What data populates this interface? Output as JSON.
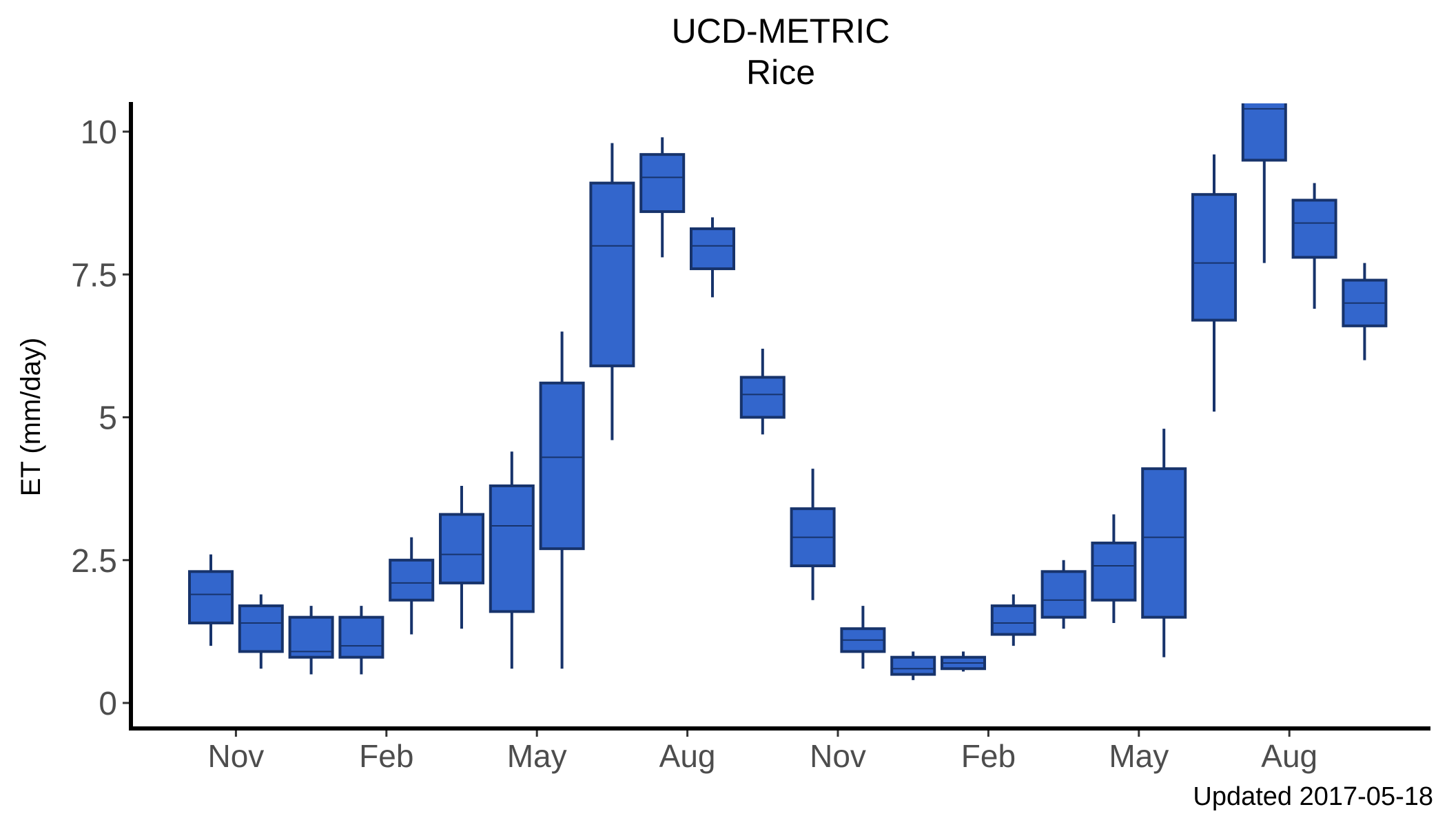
{
  "chart_data": {
    "type": "boxplot",
    "title": "UCD-METRIC",
    "subtitle": "Rice",
    "ylabel": "ET (mm/day)",
    "xlabel": "",
    "caption": "Updated  2017-05-18",
    "ylim": [
      -0.5,
      10.5
    ],
    "yticks": [
      {
        "value": 0,
        "label": "0"
      },
      {
        "value": 2.5,
        "label": "2.5"
      },
      {
        "value": 5,
        "label": "5"
      },
      {
        "value": 7.5,
        "label": "7.5"
      },
      {
        "value": 10,
        "label": "10"
      }
    ],
    "xticks": [
      {
        "label": "Nov",
        "index": 0.5
      },
      {
        "label": "Feb",
        "index": 3.5
      },
      {
        "label": "May",
        "index": 6.5
      },
      {
        "label": "Aug",
        "index": 9.5
      },
      {
        "label": "Nov",
        "index": 12.5
      },
      {
        "label": "Feb",
        "index": 15.5
      },
      {
        "label": "May",
        "index": 18.5
      },
      {
        "label": "Aug",
        "index": 21.5
      }
    ],
    "box_fill": "#3366cc",
    "box_stroke": "#17336b",
    "boxes": [
      {
        "low": 1.0,
        "q1": 1.4,
        "median": 1.9,
        "q3": 2.3,
        "high": 2.6
      },
      {
        "low": 0.6,
        "q1": 0.9,
        "median": 1.4,
        "q3": 1.7,
        "high": 1.9
      },
      {
        "low": 0.5,
        "q1": 0.8,
        "median": 0.9,
        "q3": 1.5,
        "high": 1.7
      },
      {
        "low": 0.5,
        "q1": 0.8,
        "median": 1.0,
        "q3": 1.5,
        "high": 1.7
      },
      {
        "low": 1.2,
        "q1": 1.8,
        "median": 2.1,
        "q3": 2.5,
        "high": 2.9
      },
      {
        "low": 1.3,
        "q1": 2.1,
        "median": 2.6,
        "q3": 3.3,
        "high": 3.8
      },
      {
        "low": 0.6,
        "q1": 1.6,
        "median": 3.1,
        "q3": 3.8,
        "high": 4.4
      },
      {
        "low": 0.6,
        "q1": 2.7,
        "median": 4.3,
        "q3": 5.6,
        "high": 6.5
      },
      {
        "low": 4.6,
        "q1": 5.9,
        "median": 8.0,
        "q3": 9.1,
        "high": 9.8
      },
      {
        "low": 7.8,
        "q1": 8.6,
        "median": 9.2,
        "q3": 9.6,
        "high": 9.9
      },
      {
        "low": 7.1,
        "q1": 7.6,
        "median": 8.0,
        "q3": 8.3,
        "high": 8.5
      },
      {
        "low": 4.7,
        "q1": 5.0,
        "median": 5.4,
        "q3": 5.7,
        "high": 6.2
      },
      {
        "low": 1.8,
        "q1": 2.4,
        "median": 2.9,
        "q3": 3.4,
        "high": 4.1
      },
      {
        "low": 0.6,
        "q1": 0.9,
        "median": 1.1,
        "q3": 1.3,
        "high": 1.7
      },
      {
        "low": 0.4,
        "q1": 0.5,
        "median": 0.6,
        "q3": 0.8,
        "high": 0.9
      },
      {
        "low": 0.55,
        "q1": 0.6,
        "median": 0.7,
        "q3": 0.8,
        "high": 0.9
      },
      {
        "low": 1.0,
        "q1": 1.2,
        "median": 1.4,
        "q3": 1.7,
        "high": 1.9
      },
      {
        "low": 1.3,
        "q1": 1.5,
        "median": 1.8,
        "q3": 2.3,
        "high": 2.5
      },
      {
        "low": 1.4,
        "q1": 1.8,
        "median": 2.4,
        "q3": 2.8,
        "high": 3.3
      },
      {
        "low": 0.8,
        "q1": 1.5,
        "median": 2.9,
        "q3": 4.1,
        "high": 4.8
      },
      {
        "low": 5.1,
        "q1": 6.7,
        "median": 7.7,
        "q3": 8.9,
        "high": 9.6
      },
      {
        "low": 7.7,
        "q1": 9.5,
        "median": 10.4,
        "q3": 10.9,
        "high": 11.2
      },
      {
        "low": 6.9,
        "q1": 7.8,
        "median": 8.4,
        "q3": 8.8,
        "high": 9.1
      },
      {
        "low": 6.0,
        "q1": 6.6,
        "median": 7.0,
        "q3": 7.4,
        "high": 7.7
      }
    ]
  }
}
